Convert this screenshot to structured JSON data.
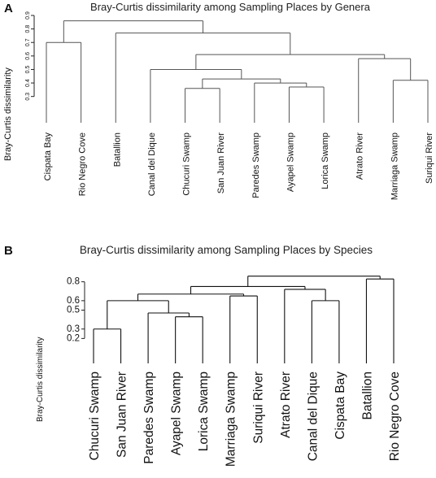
{
  "panels": {
    "a": {
      "label": "A"
    },
    "b": {
      "label": "B"
    }
  },
  "chart_data": [
    {
      "type": "dendrogram",
      "title": "Bray-Curtis dissimilarity among Sampling Places by Genera",
      "ylabel": "Bray-Curtis dissimilarity",
      "yticks": [
        0.3,
        0.4,
        0.5,
        0.6,
        0.7,
        0.8,
        0.9
      ],
      "ylim": [
        0.25,
        0.9
      ],
      "leaves": [
        "Cispata Bay",
        "Rio Negro Cove",
        "Batallion",
        "Canal del Dique",
        "Chucuri Swamp",
        "San Juan River",
        "Paredes Swamp",
        "Ayapel Swamp",
        "Lorica Swamp",
        "Atrato River",
        "Marriaga Swamp",
        "Suriqui River"
      ],
      "merges": [
        {
          "a": "L4",
          "b": "L5",
          "height": 0.36
        },
        {
          "a": "L7",
          "b": "L8",
          "height": 0.37
        },
        {
          "a": "L6",
          "b": "N1",
          "height": 0.4
        },
        {
          "a": "N0",
          "b": "N2",
          "height": 0.43
        },
        {
          "a": "L10",
          "b": "L11",
          "height": 0.42
        },
        {
          "a": "L3",
          "b": "N3",
          "height": 0.5
        },
        {
          "a": "L9",
          "b": "N4",
          "height": 0.58
        },
        {
          "a": "N5",
          "b": "N6",
          "height": 0.61
        },
        {
          "a": "L2",
          "b": "N7",
          "height": 0.77
        },
        {
          "a": "L0",
          "b": "L1",
          "height": 0.7
        },
        {
          "a": "N9",
          "b": "N8",
          "height": 0.86
        }
      ]
    },
    {
      "type": "dendrogram",
      "title": "Bray-Curtis dissimilarity among Sampling Places by Species",
      "ylabel": "Bray-Curtis dissimilarity",
      "yticks": [
        0.2,
        0.3,
        0.5,
        0.6,
        0.8
      ],
      "ylim": [
        0.1,
        0.9
      ],
      "leaves": [
        "Chucuri Swamp",
        "San Juan River",
        "Paredes Swamp",
        "Ayapel Swamp",
        "Lorica Swamp",
        "Marriaga Swamp",
        "Suriqui River",
        "Atrato River",
        "Canal del Dique",
        "Cispata Bay",
        "Batallion",
        "Rio Negro Cove"
      ],
      "merges": [
        {
          "a": "L0",
          "b": "L1",
          "height": 0.3
        },
        {
          "a": "L3",
          "b": "L4",
          "height": 0.43
        },
        {
          "a": "L2",
          "b": "N1",
          "height": 0.47
        },
        {
          "a": "N0",
          "b": "N2",
          "height": 0.6
        },
        {
          "a": "L5",
          "b": "L6",
          "height": 0.65
        },
        {
          "a": "L8",
          "b": "L9",
          "height": 0.6
        },
        {
          "a": "L7",
          "b": "N5",
          "height": 0.72
        },
        {
          "a": "N3",
          "b": "N4",
          "height": 0.67
        },
        {
          "a": "N7",
          "b": "N6",
          "height": 0.75
        },
        {
          "a": "L10",
          "b": "L11",
          "height": 0.83
        },
        {
          "a": "N8",
          "b": "N9",
          "height": 0.86
        }
      ]
    }
  ]
}
